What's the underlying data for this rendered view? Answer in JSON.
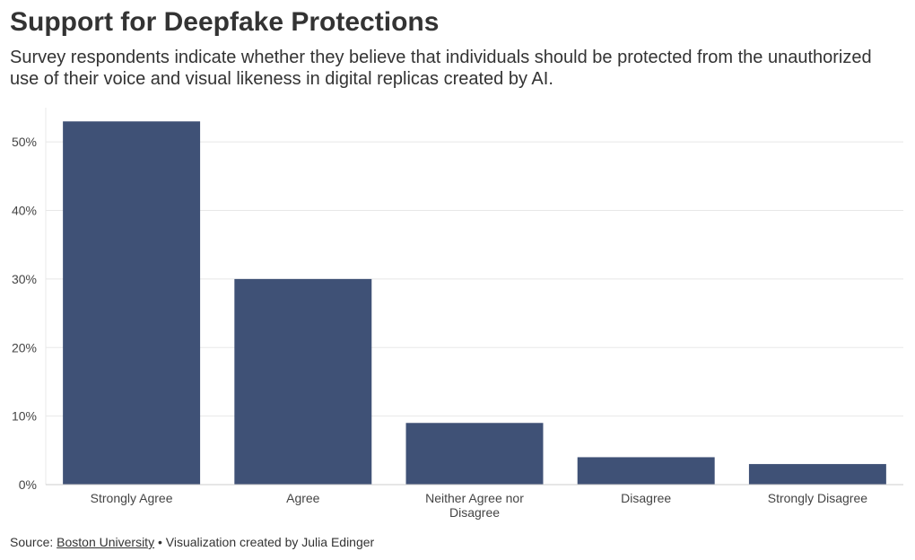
{
  "header": {
    "title": "Support for Deepfake Protections",
    "subtitle": "Survey respondents indicate whether they believe that individuals should be protected from the unauthorized use of their voice and visual likeness in digital replicas created by AI."
  },
  "footer": {
    "source_prefix": "Source: ",
    "source_link": "Boston University",
    "credit": " • Visualization created by Julia Edinger"
  },
  "colors": {
    "bar": "#3f5176",
    "grid": "#e8e8e8",
    "axis": "#cccccc"
  },
  "chart_data": {
    "type": "bar",
    "title": "Support for Deepfake Protections",
    "xlabel": "",
    "ylabel": "",
    "categories": [
      [
        "Strongly Agree"
      ],
      [
        "Agree"
      ],
      [
        "Neither Agree nor",
        "Disagree"
      ],
      [
        "Disagree"
      ],
      [
        "Strongly Disagree"
      ]
    ],
    "values": [
      53,
      30,
      9,
      4,
      3
    ],
    "ylim": [
      0,
      55
    ],
    "yticks": [
      0,
      10,
      20,
      30,
      40,
      50
    ],
    "ytick_labels": [
      "0%",
      "10%",
      "20%",
      "30%",
      "40%",
      "50%"
    ],
    "grid": true,
    "legend": "none"
  }
}
